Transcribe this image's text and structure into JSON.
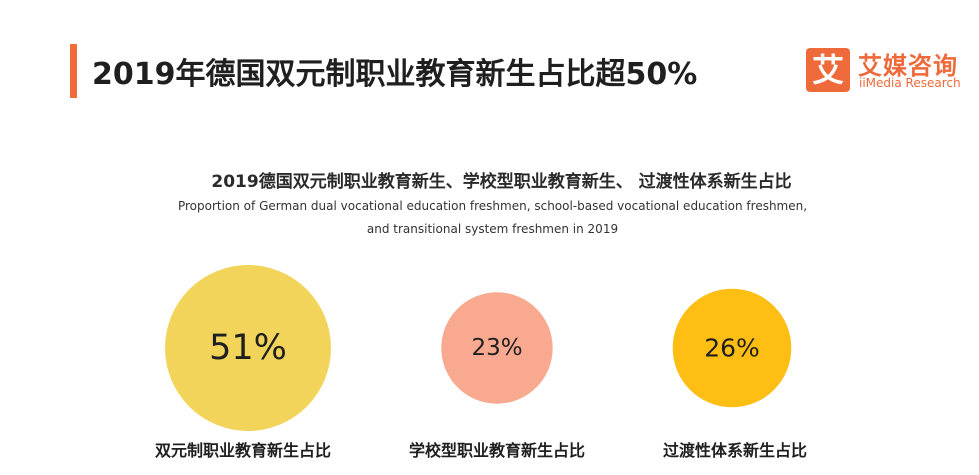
{
  "header": {
    "title": "2019年德国双元制职业教育新生占比超50%"
  },
  "logo": {
    "mark": "艾",
    "name_cn": "艾媒咨询",
    "name_en": "iiMedia Research",
    "color": "#ee6a3a"
  },
  "chart_data": {
    "type": "bubble",
    "title": "2019德国双元制职业教育新生、学校型职业教育新生、 过渡性体系新生占比",
    "subtitle_line1": "Proportion of German dual vocational education freshmen, school-based vocational education freshmen,",
    "subtitle_line2": "and transitional system freshmen in 2019",
    "unit": "%",
    "categories": [
      "双元制职业教育新生占比",
      "学校型职业教育新生占比",
      "过渡性体系新生占比"
    ],
    "values": [
      51,
      23,
      26
    ],
    "value_labels": [
      "51%",
      "23%",
      "26%"
    ],
    "colors": [
      "#f2d45a",
      "#f9a98f",
      "#ffbe14"
    ]
  }
}
